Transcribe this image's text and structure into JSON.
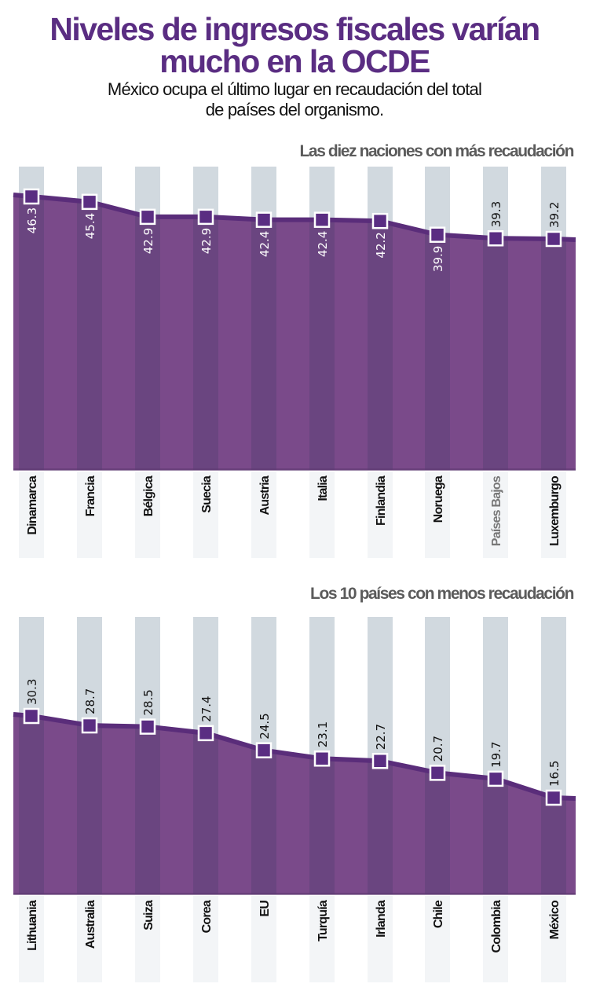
{
  "header": {
    "title_line1": "Niveles de ingresos fiscales varían",
    "title_line2": "mucho en la OCDE",
    "subtitle_line1": "México ocupa el último lugar en recaudación del total",
    "subtitle_line2": "de países del organismo."
  },
  "colors": {
    "title": "#5a2d82",
    "area_fill": "#7a4a8a",
    "area_column": "#6a4580",
    "line": "#5a2d7a",
    "marker": "#5a2d82",
    "stripe": "#d1d9df",
    "label_muted": "#777777"
  },
  "chart_data": [
    {
      "type": "area",
      "title": "Las diez naciones con más recaudación",
      "categories": [
        "Dinamarca",
        "Francia",
        "Bélgica",
        "Suecia",
        "Austria",
        "Italia",
        "Finlandia",
        "Noruega",
        "Países Bajos",
        "Luxemburgo"
      ],
      "values": [
        46.3,
        45.4,
        42.9,
        42.9,
        42.4,
        42.4,
        42.2,
        39.9,
        39.3,
        39.2
      ],
      "value_labels": [
        "46.3",
        "45.4",
        "42.9",
        "42.9",
        "42.4",
        "42.4",
        "42.2",
        "39.9",
        "39.3",
        "39.2"
      ],
      "xlabel": "",
      "ylabel": "",
      "grid": false,
      "legend": "none"
    },
    {
      "type": "area",
      "title": "Los 10 países con menos recaudación",
      "categories": [
        "Lithuania",
        "Australia",
        "Suiza",
        "Corea",
        "EU",
        "Turquía",
        "Irlanda",
        "Chile",
        "Colombia",
        "México"
      ],
      "values": [
        30.3,
        28.7,
        28.5,
        27.4,
        24.5,
        23.1,
        22.7,
        20.7,
        19.7,
        16.5
      ],
      "value_labels": [
        "30.3",
        "28.7",
        "28.5",
        "27.4",
        "24.5",
        "23.1",
        "22.7",
        "20.7",
        "19.7",
        "16.5"
      ],
      "xlabel": "",
      "ylabel": "",
      "grid": false,
      "legend": "none"
    }
  ]
}
